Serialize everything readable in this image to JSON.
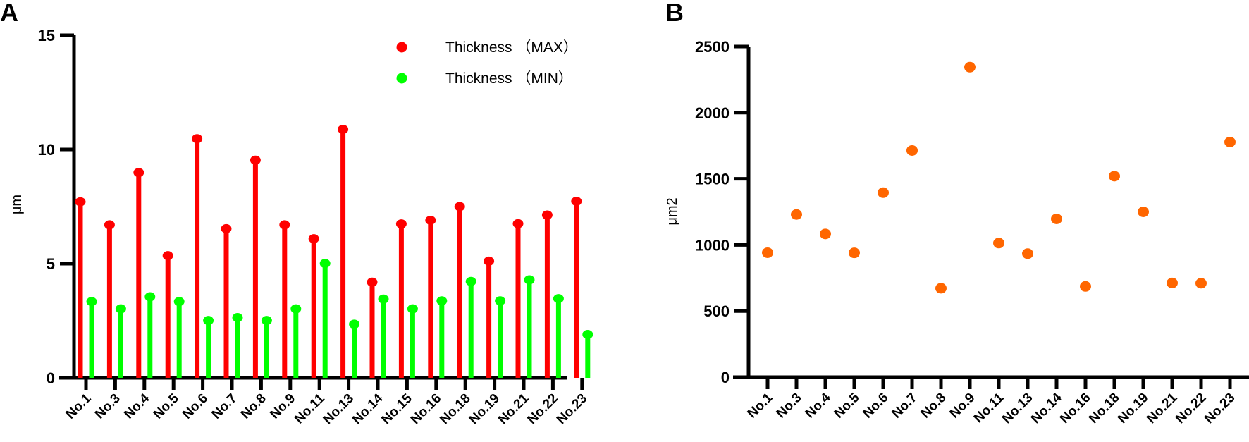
{
  "chart_data": [
    {
      "panel_label": "A",
      "type": "lollipop-bar",
      "ylabel": "μm",
      "xlabel": "",
      "ylim": [
        0,
        15
      ],
      "yticks": [
        0,
        5,
        10,
        15
      ],
      "grid": false,
      "legend_position": "top-right",
      "categories": [
        "No.1",
        "No.3",
        "No.4",
        "No.5",
        "No.6",
        "No.7",
        "No.8",
        "No.9",
        "No.11",
        "No.13",
        "No.14",
        "No.15",
        "No.16",
        "No.18",
        "No.19",
        "No.21",
        "No.22",
        "No.23"
      ],
      "series": [
        {
          "name": "Thickness （MAX）",
          "color": "#FF0000",
          "values": [
            7.71,
            6.7,
            8.99,
            5.35,
            10.47,
            6.53,
            9.53,
            6.7,
            6.09,
            10.88,
            4.19,
            6.74,
            6.9,
            7.5,
            5.11,
            6.75,
            7.13,
            7.73
          ]
        },
        {
          "name": "Thickness （MIN）",
          "color": "#00FF00",
          "values": [
            3.34,
            3.02,
            3.55,
            3.34,
            2.51,
            2.64,
            2.51,
            3.02,
            5.01,
            2.35,
            3.45,
            3.02,
            3.37,
            4.22,
            3.37,
            4.29,
            3.47,
            1.9
          ]
        }
      ]
    },
    {
      "panel_label": "B",
      "type": "scatter",
      "ylabel": "μm2",
      "xlabel": "",
      "ylim": [
        0,
        2500
      ],
      "yticks": [
        0,
        500,
        1000,
        1500,
        2000,
        2500
      ],
      "grid": false,
      "color": "#FF6600",
      "categories": [
        "No.1",
        "No.3",
        "No.4",
        "No.5",
        "No.6",
        "No.7",
        "No.8",
        "No.9",
        "No.11",
        "No.13",
        "No.14",
        "No.16",
        "No.18",
        "No.19",
        "No.21",
        "No.22",
        "No.23"
      ],
      "values": [
        941,
        1230,
        1083,
        940,
        1395,
        1714,
        672,
        2344,
        1014,
        934,
        1197,
        686,
        1520,
        1250,
        712,
        710,
        1778
      ]
    }
  ]
}
